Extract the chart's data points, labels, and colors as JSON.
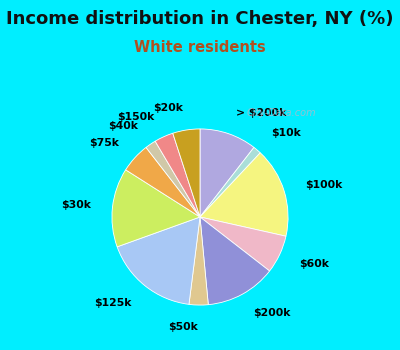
{
  "title": "Income distribution in Chester, NY (%)",
  "subtitle": "White residents",
  "title_fontsize": 13,
  "subtitle_fontsize": 10.5,
  "title_color": "#111111",
  "subtitle_color": "#b05020",
  "bg_cyan": "#00eeff",
  "bg_chart": "#e0f5ee",
  "labels": [
    "> $200k",
    "$10k",
    "$100k",
    "$60k",
    "$200k",
    "$50k",
    "$125k",
    "$30k",
    "$75k",
    "$40k",
    "$150k",
    "$20k"
  ],
  "sizes": [
    10.5,
    1.5,
    16.5,
    7.0,
    13.0,
    3.5,
    17.5,
    14.5,
    5.5,
    2.0,
    3.5,
    5.0
  ],
  "colors": [
    "#b0a8e0",
    "#aaded8",
    "#f5f580",
    "#f0b8c8",
    "#9090d8",
    "#e0c890",
    "#a8c8f5",
    "#ccee60",
    "#f0a848",
    "#d0c8a8",
    "#f08888",
    "#c8a020"
  ],
  "startangle": 90,
  "label_fontsize": 7.8,
  "label_distance": 1.25,
  "watermark": "City-Data.com",
  "watermark_color": "#aabbcc",
  "watermark_fontsize": 7
}
